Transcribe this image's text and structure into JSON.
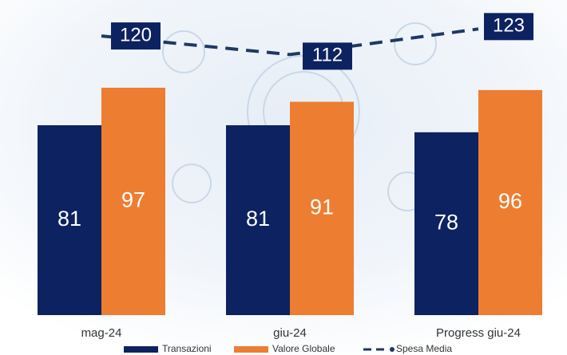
{
  "chart_data": {
    "type": "bar",
    "categories": [
      "mag-24",
      "giu-24",
      "Progress giu-24"
    ],
    "series": [
      {
        "name": "Transazioni",
        "color": "#0d2260",
        "values": [
          81,
          81,
          78
        ]
      },
      {
        "name": "Valore Globale",
        "color": "#ed7d31",
        "values": [
          97,
          91,
          96
        ]
      },
      {
        "name": "Spesa Media",
        "type": "line",
        "axis": "y2",
        "color": "#1f3864",
        "values": [
          120,
          112,
          123
        ]
      }
    ],
    "ylim": [
      0,
      130
    ],
    "y2lim": [
      0,
      131
    ],
    "legend": "bottom"
  }
}
